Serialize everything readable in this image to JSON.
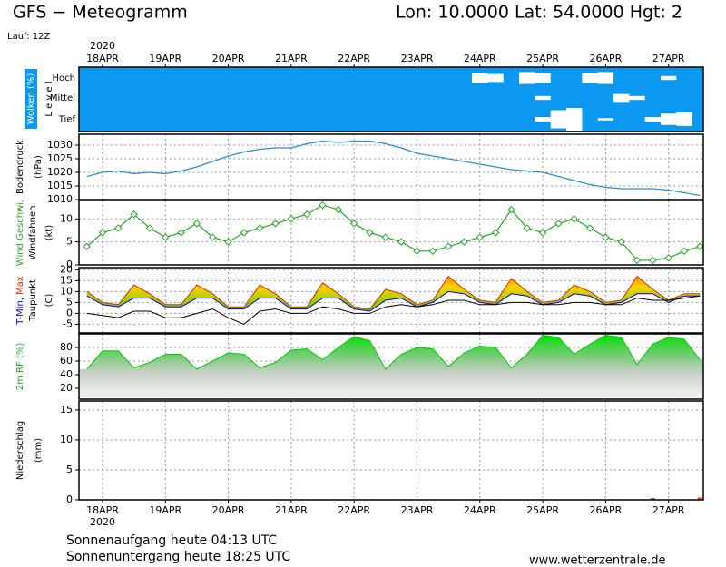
{
  "header": {
    "title": "GFS − Meteogramm",
    "location": "Lon: 10.0000 Lat: 54.0000 Hgt: 2",
    "run": "Lauf: 12Z"
  },
  "time_axis": {
    "year": "2020",
    "categories": [
      null,
      "18APR",
      null,
      null,
      null,
      "19APR",
      null,
      null,
      null,
      "20APR",
      null,
      null,
      null,
      "21APR",
      null,
      null,
      null,
      "22APR",
      null,
      null,
      null,
      "23APR",
      null,
      null,
      null,
      "24APR",
      null,
      null,
      null,
      "25APR",
      null,
      null,
      null,
      "26APR",
      null,
      null,
      null,
      "27APR",
      null,
      null
    ]
  },
  "chart_data": [
    {
      "type": "cloud-levels",
      "ylabel": "Wolken (%)",
      "ylabel2": "L e v e l",
      "background": "#0a98f0",
      "series": [
        {
          "name": "Hoch",
          "color": "#ffffff",
          "values": [
            0,
            0,
            0,
            0,
            0,
            0,
            0,
            0,
            0,
            0,
            0,
            0,
            0,
            0,
            0,
            0,
            0,
            0,
            0,
            0,
            0,
            0,
            0,
            0,
            0,
            50,
            40,
            0,
            60,
            50,
            0,
            0,
            50,
            60,
            0,
            0,
            0,
            20,
            0,
            0
          ]
        },
        {
          "name": "Mittel",
          "color": "#ffffff",
          "values": [
            0,
            0,
            0,
            0,
            0,
            0,
            0,
            0,
            0,
            0,
            0,
            0,
            0,
            0,
            0,
            0,
            0,
            0,
            0,
            0,
            0,
            0,
            0,
            0,
            0,
            0,
            0,
            0,
            0,
            20,
            0,
            0,
            0,
            0,
            40,
            20,
            0,
            0,
            0,
            0
          ]
        },
        {
          "name": "Tief",
          "color": "#ffffff",
          "values": [
            0,
            0,
            0,
            0,
            0,
            0,
            0,
            0,
            0,
            0,
            0,
            0,
            0,
            0,
            0,
            0,
            0,
            0,
            0,
            0,
            0,
            0,
            0,
            0,
            0,
            0,
            0,
            0,
            0,
            20,
            80,
            100,
            0,
            10,
            0,
            0,
            20,
            50,
            60,
            0
          ]
        }
      ]
    },
    {
      "type": "line",
      "ylabel": "Bodendruck",
      "yunit": "(hPa)",
      "ylim": [
        1010,
        1034
      ],
      "yticks": [
        1010,
        1015,
        1020,
        1025,
        1030
      ],
      "grid": true,
      "color": "#2a8fd0",
      "values": [
        1018.5,
        1020,
        1020.5,
        1019.5,
        1020,
        1019.5,
        1020.5,
        1022,
        1024,
        1026,
        1027.5,
        1028.5,
        1029,
        1029,
        1030.5,
        1031.5,
        1031,
        1031.5,
        1031.5,
        1030.5,
        1029,
        1027,
        1026,
        1025,
        1024,
        1023,
        1022,
        1021,
        1020.5,
        1020,
        1018.5,
        1017,
        1015.5,
        1014.5,
        1014,
        1014,
        1014,
        1013.5,
        1012.5,
        1011.5
      ]
    },
    {
      "type": "line",
      "ylabel2": "Windfahnen",
      "yunit": "(kt)",
      "ylim": [
        0,
        14
      ],
      "yticks": [
        0,
        5,
        10
      ],
      "grid": true,
      "markers": "diamond",
      "series": [
        {
          "name": "Wind Geschwi.",
          "color": "#22aa22",
          "values": [
            4,
            7,
            8,
            11,
            8,
            6,
            7,
            9,
            6,
            5,
            7,
            8,
            9,
            10,
            11,
            13,
            12,
            9,
            7,
            6,
            5,
            3,
            3,
            4,
            5,
            6,
            7,
            12,
            8,
            7,
            9,
            10,
            8,
            6,
            5,
            1,
            1,
            1.5,
            3,
            4
          ]
        }
      ]
    },
    {
      "type": "band",
      "yunit": "(C)",
      "ylim": [
        -9,
        21
      ],
      "yticks": [
        -5,
        0,
        5,
        10,
        15,
        20
      ],
      "grid": true,
      "series": [
        {
          "name": "T-Min,",
          "color": "#0000ee",
          "values": [
            8,
            4,
            3,
            7,
            7,
            3,
            3,
            7,
            7,
            2,
            2,
            7,
            7,
            2,
            2,
            7,
            7,
            2,
            1,
            6,
            7,
            3,
            5,
            10,
            9,
            5,
            4,
            9,
            8,
            4,
            5,
            9,
            8,
            4,
            5,
            9,
            9,
            5,
            8,
            8
          ]
        },
        {
          "name": "Max",
          "color": "#ee2200",
          "values": [
            10,
            5,
            4,
            13,
            9,
            4,
            4,
            13,
            9,
            3,
            3,
            13,
            9,
            3,
            3,
            14,
            9,
            3,
            2,
            11,
            9,
            4,
            6,
            17,
            11,
            6,
            5,
            16,
            10,
            5,
            6,
            13,
            10,
            5,
            6,
            17,
            11,
            6,
            9,
            9
          ]
        },
        {
          "name": "Taupunkt",
          "color": "#000000",
          "values": [
            0,
            -1,
            -2,
            1,
            1,
            -2,
            -2,
            0,
            2,
            -2,
            -5,
            1,
            2,
            0,
            0,
            3,
            2,
            0,
            0,
            3,
            4,
            3,
            4,
            6,
            6,
            4,
            4,
            5,
            5,
            4,
            4,
            5,
            5,
            4,
            4,
            7,
            6,
            6,
            7,
            8
          ]
        }
      ]
    },
    {
      "type": "area",
      "ylabel": "2m RF (%)",
      "ylabel_color": "#22aa22",
      "ylim": [
        4,
        100
      ],
      "yticks": [
        20,
        40,
        60,
        80
      ],
      "grid": true,
      "color": "#00cc00",
      "values": [
        48,
        75,
        75,
        50,
        58,
        70,
        70,
        48,
        60,
        72,
        70,
        50,
        58,
        76,
        78,
        62,
        80,
        96,
        90,
        48,
        70,
        80,
        78,
        52,
        72,
        82,
        80,
        50,
        70,
        98,
        95,
        70,
        85,
        98,
        95,
        55,
        85,
        95,
        92,
        62
      ]
    },
    {
      "type": "bar",
      "ylabel": "Niederschlag",
      "yunit": "(mm)",
      "ylim": [
        0,
        16.5
      ],
      "yticks": [
        0,
        5,
        10,
        15
      ],
      "grid": true,
      "color": "#ff4400",
      "values": [
        0,
        0,
        0,
        0,
        0,
        0,
        0,
        0,
        0,
        0,
        0,
        0,
        0,
        0,
        0,
        0,
        0,
        0,
        0,
        0,
        0,
        0,
        0,
        0,
        0,
        0,
        0,
        0,
        0,
        0,
        0,
        0,
        0,
        0,
        0,
        0,
        0.3,
        0,
        0,
        0.4
      ]
    }
  ],
  "footer": {
    "sunrise": "Sonnenaufgang heute 04:13 UTC",
    "sunset": "Sonnenuntergang heute 18:25 UTC",
    "source": "www.wetterzentrale.de"
  }
}
